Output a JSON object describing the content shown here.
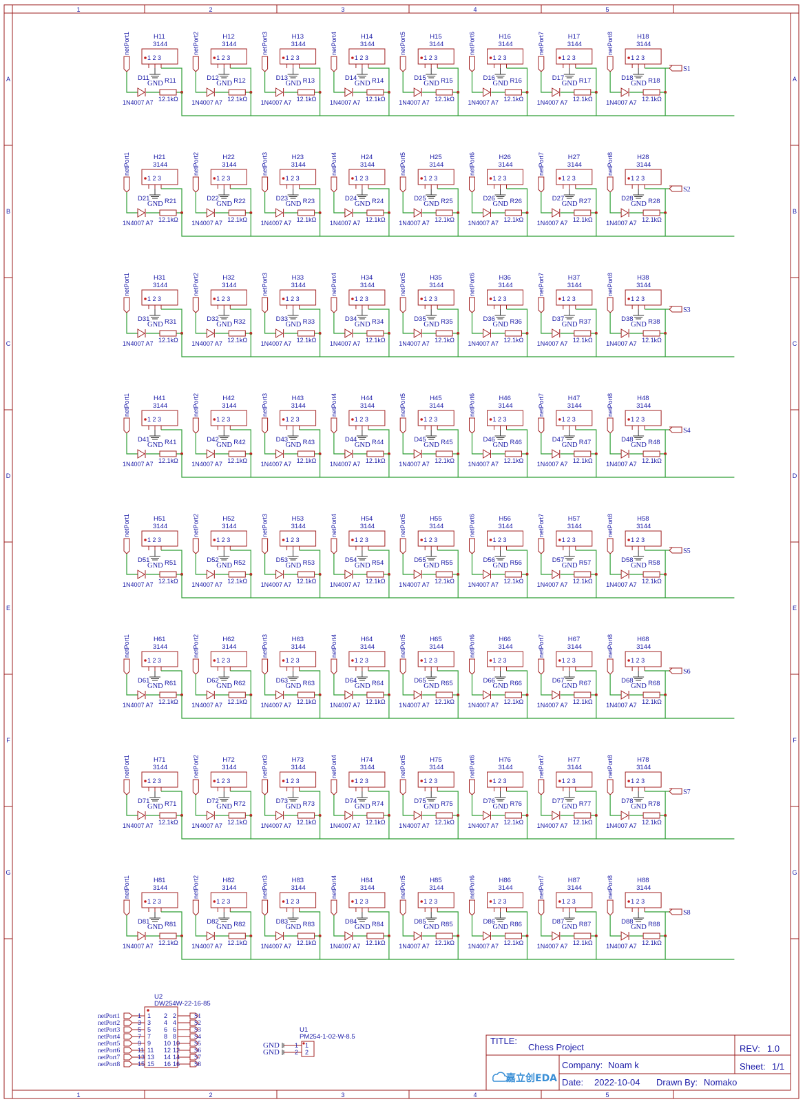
{
  "frame": {
    "columns": [
      "1",
      "2",
      "3",
      "4",
      "5"
    ],
    "rows": [
      "A",
      "B",
      "C",
      "D",
      "E",
      "F",
      "G"
    ]
  },
  "cell": {
    "hall_value": "3144",
    "diode_value": "1N4007 A7",
    "resistor_value": "12.1kΩ",
    "gnd_label": "GND",
    "pins": "1 2 3"
  },
  "grid": {
    "row_ids": [
      "1",
      "2",
      "3",
      "4",
      "5",
      "6",
      "7",
      "8"
    ],
    "col_ids": [
      "1",
      "2",
      "3",
      "4",
      "5",
      "6",
      "7",
      "8"
    ],
    "port_labels": [
      "netPort1",
      "netPort2",
      "netPort3",
      "netPort4",
      "netPort5",
      "netPort6",
      "netPort7",
      "netPort8"
    ],
    "row_outputs": [
      "S1",
      "S2",
      "S3",
      "S4",
      "S5",
      "S6",
      "S7",
      "S8"
    ]
  },
  "connector_u2": {
    "ref": "U2",
    "part": "DW254W-22-16-85",
    "left_nets": [
      "netPort1",
      "netPort2",
      "netPort3",
      "netPort4",
      "netPort5",
      "netPort6",
      "netPort7",
      "netPort8"
    ],
    "right_nets": [
      "S1",
      "S2",
      "S3",
      "S4",
      "S5",
      "S6",
      "S7",
      "S8"
    ],
    "left_pins": [
      "1",
      "3",
      "5",
      "7",
      "9",
      "11",
      "13",
      "15"
    ],
    "right_pins": [
      "2",
      "4",
      "6",
      "8",
      "10",
      "12",
      "14",
      "16"
    ]
  },
  "connector_u1": {
    "ref": "U1",
    "part": "PM254-1-02-W-8.5",
    "nets": [
      "GND",
      "GND"
    ],
    "pins": [
      "1",
      "2"
    ]
  },
  "title_block": {
    "title_label": "TITLE:",
    "title": "Chess Project",
    "rev_label": "REV:",
    "rev": "1.0",
    "company_label": "Company:",
    "company": "Noam k",
    "sheet_label": "Sheet:",
    "sheet": "1/1",
    "date_label": "Date:",
    "date": "2022-10-04",
    "drawn_label": "Drawn By:",
    "drawn_by": "Nomako",
    "logo_text": "嘉立创EDA"
  },
  "colors": {
    "wire": "#2e9e35",
    "part": "#a02020",
    "text": "#1a1aa6",
    "frame": "#9b1c1c"
  }
}
